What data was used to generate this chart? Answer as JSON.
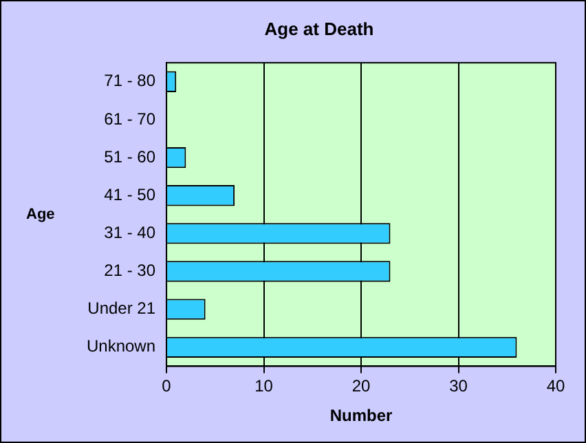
{
  "chart_data": {
    "type": "bar",
    "orientation": "horizontal",
    "title": "Age at Death",
    "xlabel": "Number",
    "ylabel": "Age",
    "categories": [
      "71 - 80",
      "61 - 70",
      "51 - 60",
      "41 - 50",
      "31 - 40",
      "21 - 30",
      "Under 21",
      "Unknown"
    ],
    "values": [
      1,
      0,
      2,
      7,
      23,
      23,
      4,
      36
    ],
    "color": "#33ccff",
    "xlim": [
      0,
      40
    ],
    "xticks": [
      0,
      10,
      20,
      30,
      40
    ],
    "grid": "x",
    "legend": false
  }
}
